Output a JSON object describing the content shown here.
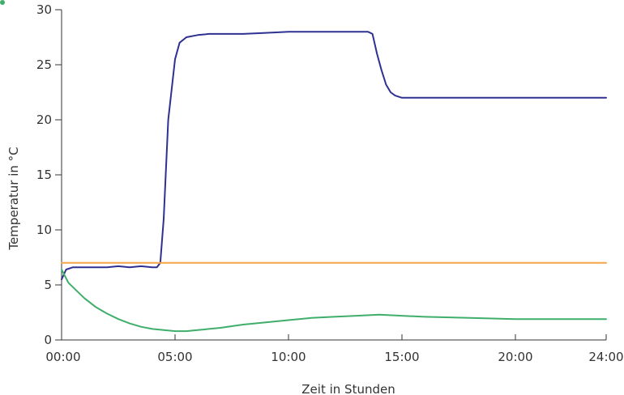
{
  "chart_data": {
    "type": "line",
    "title": "",
    "xlabel": "Zeit in Stunden",
    "ylabel": "Temperatur in °C",
    "xlim": [
      0,
      24
    ],
    "ylim": [
      0,
      30
    ],
    "grid": false,
    "legend": "none",
    "x_ticks": [
      {
        "value": 0,
        "label": "00:00"
      },
      {
        "value": 5,
        "label": "05:00"
      },
      {
        "value": 10,
        "label": "10:00"
      },
      {
        "value": 15,
        "label": "15:00"
      },
      {
        "value": 20,
        "label": "20:00"
      },
      {
        "value": 24,
        "label": "24:00"
      }
    ],
    "y_ticks": [
      {
        "value": 0,
        "label": "0"
      },
      {
        "value": 5,
        "label": "5"
      },
      {
        "value": 10,
        "label": "10"
      },
      {
        "value": 15,
        "label": "15"
      },
      {
        "value": 20,
        "label": "20"
      },
      {
        "value": 25,
        "label": "25"
      },
      {
        "value": 30,
        "label": "30"
      }
    ],
    "series": [
      {
        "color": "#2e3192",
        "x": [
          0,
          0.2,
          0.5,
          1,
          2,
          2.5,
          3,
          3.5,
          4,
          4.2,
          4.35,
          4.5,
          4.7,
          5,
          5.2,
          5.5,
          6,
          6.5,
          7,
          8,
          9,
          10,
          11,
          12,
          13,
          13.5,
          13.7,
          13.9,
          14.1,
          14.3,
          14.5,
          14.7,
          15,
          16,
          18,
          20,
          22,
          24
        ],
        "y": [
          5.5,
          6.4,
          6.6,
          6.6,
          6.6,
          6.7,
          6.6,
          6.7,
          6.6,
          6.6,
          7,
          11,
          20,
          25.5,
          27,
          27.5,
          27.7,
          27.8,
          27.8,
          27.8,
          27.9,
          28,
          28,
          28,
          28,
          28,
          27.8,
          26,
          24.5,
          23.2,
          22.5,
          22.2,
          22,
          22,
          22,
          22,
          22,
          22
        ]
      },
      {
        "color": "#f5a446",
        "x": [
          0,
          24
        ],
        "y": [
          7,
          7
        ]
      },
      {
        "color": "#3fae6a",
        "x": [
          0,
          0.3,
          0.7,
          1,
          1.5,
          2,
          2.5,
          3,
          3.5,
          4,
          4.5,
          5,
          5.5,
          6,
          7,
          8,
          9,
          10,
          11,
          12,
          13,
          14,
          15,
          16,
          18,
          20,
          22,
          24
        ],
        "y": [
          6.4,
          5.2,
          4.4,
          3.8,
          3,
          2.4,
          1.9,
          1.5,
          1.2,
          1,
          0.9,
          0.8,
          0.8,
          0.9,
          1.1,
          1.4,
          1.6,
          1.8,
          2,
          2.1,
          2.2,
          2.3,
          2.2,
          2.1,
          2,
          1.9,
          1.9,
          1.9
        ]
      }
    ]
  }
}
